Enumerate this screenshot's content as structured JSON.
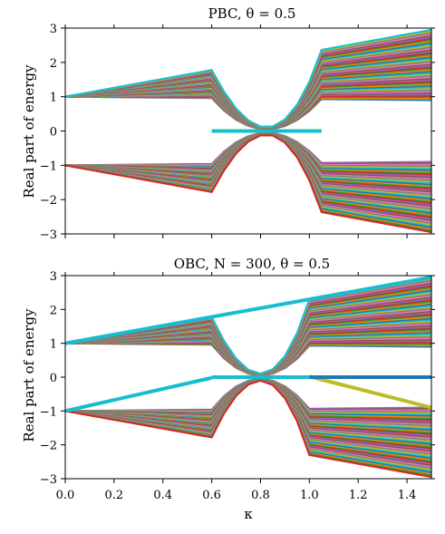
{
  "chart_data": [
    {
      "type": "line",
      "title": "PBC, θ = 0.5",
      "ylabel": "Real part of energy",
      "xlabel": "",
      "xlim": [
        0.0,
        1.5
      ],
      "ylim": [
        -3,
        3
      ],
      "x_ticks": [
        "0.0",
        "0.2",
        "0.4",
        "0.6",
        "0.8",
        "1.0",
        "1.2",
        "1.4"
      ],
      "y_ticks": [
        "3",
        "2",
        "1",
        "0",
        "−1",
        "−2",
        "−3"
      ],
      "grid": false,
      "bands": {
        "upper": {
          "start": 1,
          "min_at_end": 0.9,
          "max_at_end": 2.95
        },
        "lower": {
          "start": -1,
          "min_at_end": -2.95,
          "max_at_end": -0.9
        },
        "gap_closing": {
          "from": 0.6,
          "to": 1.05,
          "value": 0
        }
      },
      "edge_series": [],
      "zero_mode": null,
      "colors": [
        "#1f77b4",
        "#ff7f0e",
        "#2ca02c",
        "#d62728",
        "#9467bd",
        "#8c564b",
        "#e377c2",
        "#7f7f7f",
        "#bcbd22",
        "#17becf"
      ]
    },
    {
      "type": "line",
      "title": "OBC, N = 300, θ = 0.5",
      "ylabel": "Real part of energy",
      "xlabel": "κ",
      "xlim": [
        0.0,
        1.5
      ],
      "ylim": [
        -3,
        3
      ],
      "x_ticks": [
        "0.0",
        "0.2",
        "0.4",
        "0.6",
        "0.8",
        "1.0",
        "1.2",
        "1.4"
      ],
      "y_ticks": [
        "3",
        "2",
        "1",
        "0",
        "−1",
        "−2",
        "−3"
      ],
      "grid": false,
      "bands": {
        "upper": {
          "start": 1,
          "min_at_end": 0.9,
          "max_at_end": 2.95
        },
        "lower": {
          "start": -1,
          "min_at_end": -2.95,
          "max_at_end": -0.9
        },
        "gap_closing": {
          "from": 0.6,
          "to": 1.0,
          "value": 0
        }
      },
      "edge_series": [
        {
          "color": "#17becf",
          "points": [
            [
              0,
              1
            ],
            [
              1.5,
              2.95
            ]
          ]
        },
        {
          "color": "#17becf",
          "points": [
            [
              0,
              -1
            ],
            [
              0.6,
              -0.02
            ]
          ]
        },
        {
          "color": "#bcbd22",
          "points": [
            [
              1.0,
              0.02
            ],
            [
              1.5,
              -0.9
            ]
          ]
        }
      ],
      "zero_mode": {
        "from": 1.0,
        "to": 1.5,
        "value": 0,
        "color": "#1f77b4"
      },
      "colors": [
        "#1f77b4",
        "#ff7f0e",
        "#2ca02c",
        "#d62728",
        "#9467bd",
        "#8c564b",
        "#e377c2",
        "#7f7f7f",
        "#bcbd22",
        "#17becf"
      ]
    }
  ]
}
